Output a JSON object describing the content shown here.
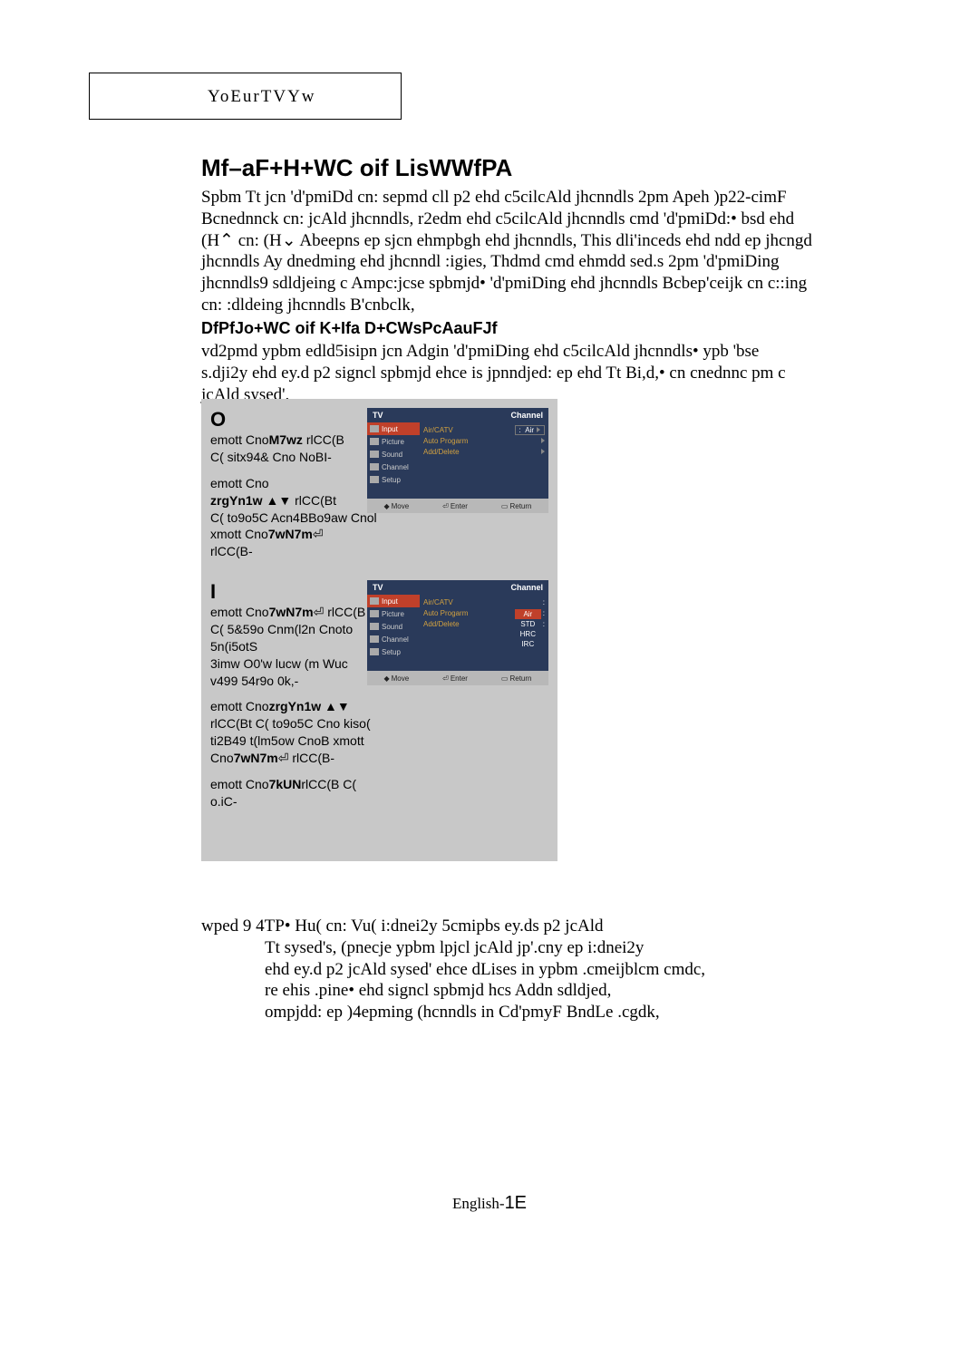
{
  "header": {
    "label": "YoEurTVYw"
  },
  "title": "Mf–aF+H+WC oif LisWWfPA",
  "intro": "Spbm Tt jcn 'd'pmiDd cn: sepmd cll p2 ehd c5cilcAld jhcnndls 2pm Apeh )p22-cimF Bcnednnck cn: jcAld jhcnndls, r2edm ehd c5cilcAld jhcnndls cmd 'd'pmiDd:• bsd ehd (H⌃   cn: (H⌄ Abeepns ep sjcn ehmpbgh ehd jhcnndls, This dli'inceds ehd ndd ep jhcngd jhcnndls Ay dnedming ehd jhcnndl :igies, Thdmd cmd ehmdd sed.s 2pm 'd'pmiDing jhcnndls9 sdldjeing c Ampc:jcse spbmjd• 'd'pmiDing ehd jhcnndls Bcbep'ceijk cn c::ing cn: :dldeing jhcnndls B'cnbclk,",
  "subheading": "DfPfJo+WC oif K+Ifa D+CWsPcAauFJf",
  "subpara": "vd2pmd ypbm edld5isipn jcn Adgin 'd'pmiDing ehd c5cilcAld jhcnndls• ypb 'bse s.dji2y ehd ey.d p2 signcl spbmjd ehce is jpnndjed: ep ehd Tt Bi,d,• cn cnednnc pm c jcAld sysed',",
  "step1": {
    "num": "O",
    "lines": [
      "emott Cno<b>M7wz</b>  rlCC(B",
      "C( sitx94& Cno NoBI-",
      "",
      "emott Cno",
      "<b>zrgYn1w</b>  ▲▼ rlCC(Bt",
      "C( to9o5C Acn4BBo9aw Cnol",
      "xmott Cno<b>7wN7m</b>⏎",
      "rlCC(B-"
    ]
  },
  "step2": {
    "num": "I",
    "lines": [
      "emott Cno<b>7wN7m</b>⏎ rlCC(B",
      "C( 5&59o  Cnm(l2n Cnoto",
      "5n(i5otS",
      "3imw O0'w lucw (m Wuc",
      "v499 54r9o 0k,-",
      "",
      "emott Cno<b>zrgYn1w</b>  ▲▼",
      "rlCC(Bt C( to9o5C Cno kiso(",
      "ti2B49 t(lm5ow CnoB xmott",
      "Cno<b>7wN7m</b>⏎ rlCC(B-",
      "",
      "emott Cno<b>7kUN</b>rlCC(B C(",
      "o.iC-"
    ]
  },
  "osd": {
    "left_tv": "TV",
    "right_channel": "Channel",
    "left_items": [
      "Input",
      "Picture",
      "Sound",
      "Channel",
      "Setup"
    ],
    "left_selected_index": 0,
    "right_rows": [
      {
        "label": "Air/CATV",
        "value": "Air",
        "boxed": true
      },
      {
        "label": "Auto Progarm",
        "arrow": true
      },
      {
        "label": "Add/Delete",
        "arrow": true
      }
    ],
    "footer": [
      "Move",
      "Enter",
      "Return"
    ],
    "options2": [
      "Air",
      "STD",
      "HRC",
      "IRC"
    ],
    "options2_selected": 0
  },
  "note": {
    "first": "wped 9 4TP• Hu( cn: Vu( i:dnei2y 5cmipbs ey.ds p2 jcAld",
    "rest": [
      "Tt sysed's, (pnecje ypbm lpjcl jcAld jp'.cny ep i:dnei2y",
      "ehd ey.d p2 jcAld sysed' ehce dLises in ypbm .cmeijblcm cmdc,",
      "re ehis .pine• ehd signcl spbmjd hcs Addn sdldjed,",
      "ompjdd: ep )4epming (hcnndls in Cd'pmyF BndLe .cgdk,"
    ]
  },
  "footer": {
    "lang": "English-",
    "page": "1E"
  },
  "colors": {
    "panel_bg": "#c8c8c8",
    "osd_bg": "#2a3a5a",
    "osd_sel": "#c0402a",
    "osd_label": "#d0a040"
  }
}
